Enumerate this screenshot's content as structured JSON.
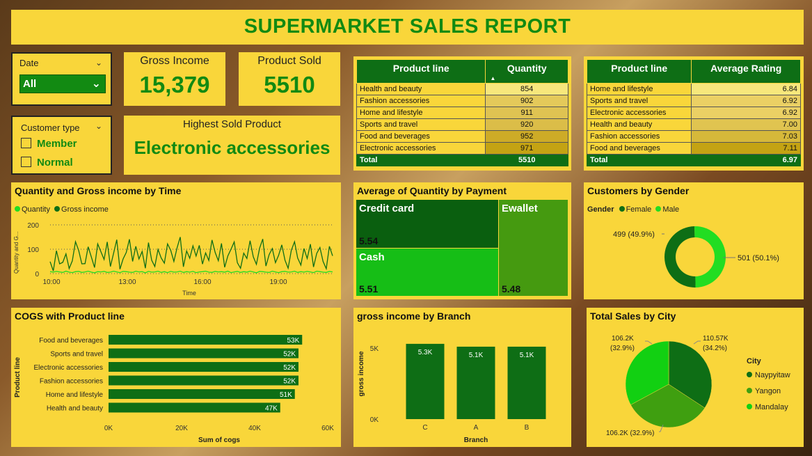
{
  "header": {
    "title": "SUPERMARKET SALES REPORT"
  },
  "slicers": {
    "date": {
      "label": "Date",
      "value": "All"
    },
    "customer_type": {
      "label": "Customer type",
      "options": [
        "Member",
        "Normal"
      ]
    }
  },
  "kpis": {
    "gross_income": {
      "label": "Gross Income",
      "value": "15,379"
    },
    "product_sold": {
      "label": "Product Sold",
      "value": "5510"
    },
    "highest_sold": {
      "label": "Highest Sold Product",
      "value": "Electronic accessories"
    }
  },
  "table_quantity": {
    "headers": [
      "Product line",
      "Quantity"
    ],
    "rows": [
      {
        "name": "Health and beauty",
        "value": "854"
      },
      {
        "name": "Fashion accessories",
        "value": "902"
      },
      {
        "name": "Home and lifestyle",
        "value": "911"
      },
      {
        "name": "Sports and travel",
        "value": "920"
      },
      {
        "name": "Food and beverages",
        "value": "952"
      },
      {
        "name": "Electronic accessories",
        "value": "971"
      }
    ],
    "total": {
      "name": "Total",
      "value": "5510"
    }
  },
  "table_rating": {
    "headers": [
      "Product line",
      "Average Rating"
    ],
    "rows": [
      {
        "name": "Home and lifestyle",
        "value": "6.84"
      },
      {
        "name": "Sports and travel",
        "value": "6.92"
      },
      {
        "name": "Electronic accessories",
        "value": "6.92"
      },
      {
        "name": "Health and beauty",
        "value": "7.00"
      },
      {
        "name": "Fashion accessories",
        "value": "7.03"
      },
      {
        "name": "Food and beverages",
        "value": "7.11"
      }
    ],
    "total": {
      "name": "Total",
      "value": "6.97"
    }
  },
  "line_chart": {
    "title": "Quantity and Gross income by Time",
    "legend": [
      "Quantity",
      "Gross income"
    ],
    "ylabel": "Quantity and G...",
    "xlabel": "Time",
    "yticks": [
      "200",
      "100",
      "0"
    ],
    "xticks": [
      "10:00",
      "13:00",
      "16:00",
      "19:00"
    ]
  },
  "treemap": {
    "title": "Average of Quantity by Payment",
    "items": [
      {
        "name": "Credit card",
        "value": "5.54"
      },
      {
        "name": "Cash",
        "value": "5.51"
      },
      {
        "name": "Ewallet",
        "value": "5.48"
      }
    ]
  },
  "donut": {
    "title": "Customers by Gender",
    "legend_title": "Gender",
    "legend": [
      "Female",
      "Male"
    ],
    "labels": [
      "499 (49.9%)",
      "501 (50.1%)"
    ]
  },
  "cogs_chart": {
    "title": "COGS with Product line",
    "ylabel": "Product line",
    "xlabel": "Sum of cogs",
    "xticks": [
      "0K",
      "20K",
      "40K",
      "60K"
    ]
  },
  "branch_chart": {
    "title": "gross income by Branch",
    "ylabel": "gross income",
    "xlabel": "Branch",
    "yticks": [
      "5K",
      "0K"
    ]
  },
  "pie_chart": {
    "title": "Total Sales by City",
    "legend_title": "City",
    "legend": [
      "Naypyitaw",
      "Yangon",
      "Mandalay"
    ],
    "labels": [
      "110.57K",
      "(34.2%)",
      "106.2K",
      "(32.9%)",
      "106.2K (32.9%)"
    ]
  },
  "colors": {
    "panel": "#f9d63a",
    "dark_green": "#0e6e15",
    "title_green": "#128a12",
    "bright_green": "#1ec41e"
  },
  "chart_data": [
    {
      "type": "line",
      "title": "Quantity and Gross income by Time",
      "xlabel": "Time",
      "ylabel": "Quantity and Gross income",
      "x_range": [
        "10:00",
        "20:59"
      ],
      "ylim": [
        0,
        200
      ],
      "series": [
        {
          "name": "Quantity",
          "color": "#22dd22",
          "values": [
            8,
            6,
            9,
            7,
            5,
            10,
            6,
            4,
            8,
            9,
            5,
            7,
            10,
            6,
            3,
            8,
            7,
            9,
            5,
            6,
            10,
            7,
            4,
            9,
            8,
            6,
            5,
            10,
            7,
            8,
            3,
            9,
            6,
            7,
            10,
            5,
            8,
            4,
            9,
            6,
            7,
            10,
            5,
            8,
            6,
            9,
            4,
            7,
            8,
            10,
            6,
            5,
            9,
            7,
            8,
            6,
            10,
            4,
            7,
            9,
            5,
            8,
            6,
            10,
            7,
            3,
            9,
            8,
            6,
            5,
            10,
            7,
            4,
            8,
            9,
            6,
            7,
            10,
            5,
            8,
            6,
            9,
            7,
            4,
            10,
            8,
            6,
            5,
            9,
            7
          ]
        },
        {
          "name": "Gross income",
          "color": "#0e6e15",
          "values": [
            49,
            11,
            94,
            40,
            46,
            81,
            21,
            52,
            131,
            95,
            40,
            41,
            110,
            68,
            25,
            122,
            90,
            58,
            130,
            29,
            83,
            139,
            18,
            60,
            87,
            141,
            50,
            112,
            60,
            91,
            22,
            127,
            55,
            29,
            99,
            64,
            43,
            122,
            96,
            50,
            106,
            150,
            28,
            93,
            63,
            114,
            72,
            116,
            39,
            85,
            54,
            138,
            87,
            53,
            124,
            26,
            73,
            100,
            130,
            45,
            22,
            84,
            62,
            135,
            69,
            38,
            104,
            142,
            31,
            78,
            103,
            45,
            75,
            118,
            55,
            22,
            96,
            131,
            64,
            35,
            103,
            62,
            121,
            27,
            83,
            107,
            50,
            20,
            112,
            73
          ]
        }
      ]
    },
    {
      "type": "table",
      "title": "Average of Quantity by Payment",
      "categories": [
        "Credit card",
        "Cash",
        "Ewallet"
      ],
      "values": [
        5.54,
        5.51,
        5.48
      ]
    },
    {
      "type": "pie",
      "title": "Customers by Gender",
      "categories": [
        "Female",
        "Male"
      ],
      "values": [
        499,
        501
      ],
      "percent": [
        49.9,
        50.1
      ]
    },
    {
      "type": "bar",
      "title": "COGS with Product line",
      "xlabel": "Sum of cogs",
      "ylabel": "Product line",
      "categories": [
        "Food and beverages",
        "Sports and travel",
        "Electronic accessories",
        "Fashion accessories",
        "Home and lifestyle",
        "Health and beauty"
      ],
      "values": [
        53,
        52,
        52,
        52,
        51,
        47
      ],
      "labels": [
        "53K",
        "52K",
        "52K",
        "52K",
        "51K",
        "47K"
      ],
      "xlim": [
        0,
        60
      ]
    },
    {
      "type": "bar",
      "title": "gross income by Branch",
      "xlabel": "Branch",
      "ylabel": "gross income",
      "categories": [
        "C",
        "A",
        "B"
      ],
      "values": [
        5.3,
        5.1,
        5.1
      ],
      "labels": [
        "5.3K",
        "5.1K",
        "5.1K"
      ],
      "ylim": [
        0,
        5.75
      ]
    },
    {
      "type": "pie",
      "title": "Total Sales by City",
      "categories": [
        "Naypyitaw",
        "Yangon",
        "Mandalay"
      ],
      "values": [
        110.57,
        106.2,
        106.2
      ],
      "percent": [
        34.2,
        32.9,
        32.9
      ]
    }
  ]
}
